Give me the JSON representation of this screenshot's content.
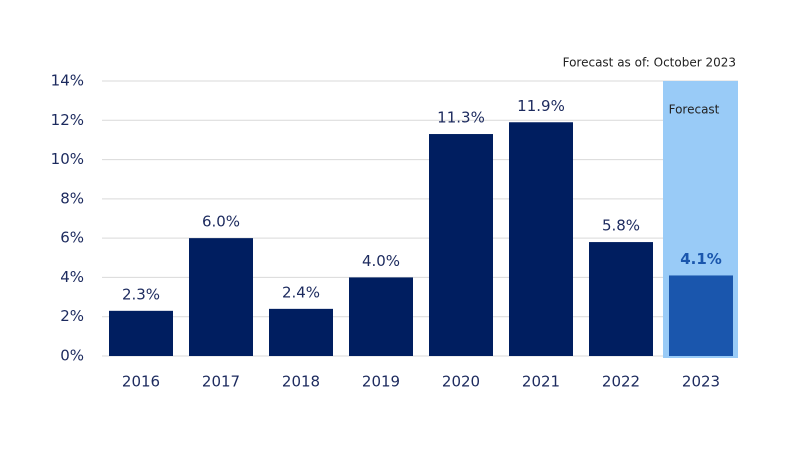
{
  "chart_data": {
    "type": "bar",
    "annotation": "Forecast as of: October 2023",
    "categories": [
      "2016",
      "2017",
      "2018",
      "2019",
      "2020",
      "2021",
      "2022",
      "2023"
    ],
    "values": [
      2.3,
      6.0,
      2.4,
      4.0,
      11.3,
      11.9,
      5.8,
      4.1
    ],
    "value_labels": [
      "2.3%",
      "6.0%",
      "2.4%",
      "4.0%",
      "11.3%",
      "11.9%",
      "5.8%",
      "4.1%"
    ],
    "colors": [
      "#001e60",
      "#001e60",
      "#001e60",
      "#001e60",
      "#001e60",
      "#001e60",
      "#001e60",
      "#1a56ad"
    ],
    "forecast_band": {
      "label": "Forecast",
      "category_index": 7,
      "color": "#99cbf7",
      "value_label_color": "#1a56ad"
    },
    "ylim": [
      0,
      14
    ],
    "yticks": [
      {
        "value": 0,
        "label": "0%"
      },
      {
        "value": 2,
        "label": "2%"
      },
      {
        "value": 4,
        "label": "4%"
      },
      {
        "value": 6,
        "label": "6%"
      },
      {
        "value": 8,
        "label": "8%"
      },
      {
        "value": 10,
        "label": "10%"
      },
      {
        "value": 12,
        "label": "12%"
      },
      {
        "value": 14,
        "label": "14%"
      }
    ],
    "grid": true
  }
}
